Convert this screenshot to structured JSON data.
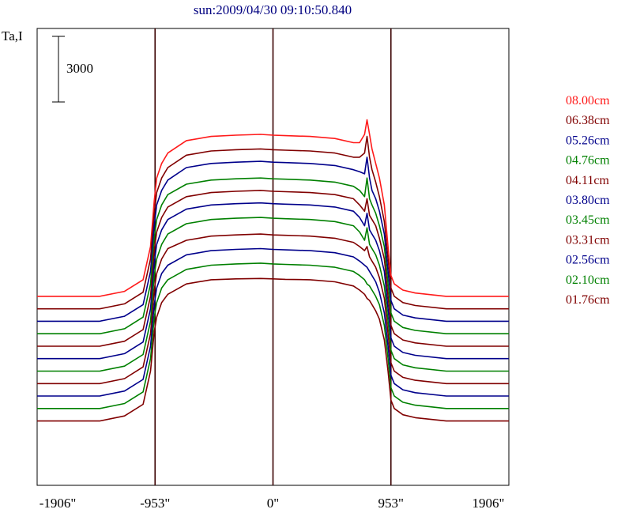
{
  "chart_data": {
    "type": "line",
    "title": "sun:2009/04/30 09:10:50.840",
    "ylabel": "Ta,I",
    "scale_bar_label": "3000",
    "scale_bar_value": 3000,
    "x_ticks": [
      {
        "value": -1906,
        "label": "-1906\""
      },
      {
        "value": -953,
        "label": "-953\""
      },
      {
        "value": 0,
        "label": "0\""
      },
      {
        "value": 953,
        "label": "953\""
      },
      {
        "value": 1906,
        "label": "1906\""
      }
    ],
    "xlim": [
      -1906,
      1906
    ],
    "vertical_lines_at": [
      -953,
      0,
      953
    ],
    "grid": false,
    "legend_position": "right",
    "profile_x": [
      -1906,
      -1400,
      -1200,
      -1050,
      -990,
      -960,
      -940,
      -900,
      -850,
      -700,
      -500,
      -300,
      -100,
      0,
      100,
      300,
      500,
      650,
      700,
      740,
      760,
      780,
      800,
      830,
      860,
      900,
      930,
      953,
      980,
      1050,
      1150,
      1400,
      1906
    ],
    "series": [
      {
        "name": "08.00cm",
        "color": "#ff1a1a",
        "baseline": 2400,
        "values": [
          0,
          0,
          120,
          400,
          1200,
          2300,
          2850,
          3200,
          3450,
          3750,
          3850,
          3880,
          3900,
          3880,
          3870,
          3850,
          3800,
          3700,
          3700,
          3900,
          4250,
          3900,
          3550,
          3200,
          2850,
          2200,
          1200,
          500,
          300,
          150,
          80,
          0,
          0
        ]
      },
      {
        "name": "06.38cm",
        "color": "#800000",
        "baseline": 2100,
        "values": [
          0,
          0,
          120,
          400,
          1200,
          2300,
          2800,
          3150,
          3400,
          3700,
          3800,
          3830,
          3850,
          3830,
          3820,
          3800,
          3750,
          3650,
          3650,
          3750,
          4150,
          3650,
          3350,
          3050,
          2700,
          2100,
          1200,
          500,
          300,
          150,
          80,
          0,
          0
        ]
      },
      {
        "name": "05.26cm",
        "color": "#00008b",
        "baseline": 1800,
        "values": [
          0,
          0,
          120,
          400,
          1200,
          2300,
          2800,
          3150,
          3400,
          3700,
          3800,
          3830,
          3850,
          3830,
          3820,
          3800,
          3750,
          3650,
          3600,
          3550,
          3950,
          3450,
          3150,
          2950,
          2650,
          2100,
          1200,
          500,
          300,
          150,
          80,
          0,
          0
        ]
      },
      {
        "name": "04.76cm",
        "color": "#008000",
        "baseline": 1500,
        "values": [
          0,
          0,
          120,
          400,
          1200,
          2300,
          2750,
          3100,
          3350,
          3600,
          3700,
          3730,
          3750,
          3730,
          3720,
          3700,
          3650,
          3550,
          3450,
          3300,
          3750,
          3250,
          3100,
          2900,
          2600,
          2100,
          1200,
          500,
          300,
          150,
          80,
          0,
          0
        ]
      },
      {
        "name": "04.11cm",
        "color": "#800000",
        "baseline": 1200,
        "values": [
          0,
          0,
          120,
          400,
          1200,
          2300,
          2750,
          3100,
          3350,
          3600,
          3700,
          3730,
          3750,
          3730,
          3720,
          3700,
          3650,
          3550,
          3400,
          3250,
          3550,
          3150,
          3050,
          2900,
          2600,
          2100,
          1200,
          500,
          300,
          150,
          80,
          0,
          0
        ]
      },
      {
        "name": "03.80cm",
        "color": "#00008b",
        "baseline": 900,
        "values": [
          0,
          0,
          120,
          400,
          1200,
          2300,
          2750,
          3100,
          3350,
          3600,
          3700,
          3730,
          3750,
          3730,
          3720,
          3700,
          3650,
          3550,
          3400,
          3200,
          3500,
          3100,
          3000,
          2850,
          2600,
          2100,
          1200,
          500,
          300,
          150,
          80,
          0,
          0
        ]
      },
      {
        "name": "03.45cm",
        "color": "#008000",
        "baseline": 600,
        "values": [
          0,
          0,
          120,
          400,
          1200,
          2300,
          2700,
          3050,
          3300,
          3550,
          3650,
          3680,
          3700,
          3680,
          3670,
          3650,
          3600,
          3500,
          3350,
          3150,
          3450,
          3050,
          2950,
          2800,
          2550,
          2050,
          1200,
          500,
          300,
          150,
          80,
          0,
          0
        ]
      },
      {
        "name": "03.31cm",
        "color": "#800000",
        "baseline": 300,
        "values": [
          0,
          0,
          120,
          400,
          1200,
          2250,
          2650,
          3000,
          3250,
          3450,
          3550,
          3580,
          3600,
          3580,
          3570,
          3550,
          3500,
          3400,
          3300,
          3200,
          3300,
          3050,
          2950,
          2800,
          2550,
          2050,
          1200,
          500,
          300,
          150,
          80,
          0,
          0
        ]
      },
      {
        "name": "02.56cm",
        "color": "#00008b",
        "baseline": 0,
        "values": [
          0,
          0,
          120,
          400,
          1200,
          2200,
          2600,
          2950,
          3150,
          3400,
          3500,
          3530,
          3550,
          3530,
          3520,
          3500,
          3450,
          3350,
          3250,
          3150,
          3100,
          3000,
          2900,
          2750,
          2500,
          2000,
          1200,
          500,
          300,
          150,
          80,
          0,
          0
        ]
      },
      {
        "name": "02.10cm",
        "color": "#008000",
        "baseline": -300,
        "values": [
          0,
          0,
          120,
          400,
          1200,
          2200,
          2550,
          2900,
          3100,
          3350,
          3450,
          3480,
          3500,
          3480,
          3470,
          3450,
          3400,
          3300,
          3200,
          3100,
          3000,
          2950,
          2850,
          2700,
          2500,
          2000,
          1200,
          500,
          300,
          150,
          80,
          0,
          0
        ]
      },
      {
        "name": "01.76cm",
        "color": "#800000",
        "baseline": -600,
        "values": [
          0,
          0,
          120,
          400,
          1200,
          2150,
          2500,
          2850,
          3050,
          3300,
          3400,
          3420,
          3430,
          3420,
          3410,
          3400,
          3350,
          3250,
          3150,
          3050,
          2950,
          2900,
          2800,
          2650,
          2450,
          1950,
          1200,
          500,
          300,
          150,
          80,
          0,
          0
        ]
      }
    ],
    "ylim": [
      -2150,
      8850
    ]
  }
}
